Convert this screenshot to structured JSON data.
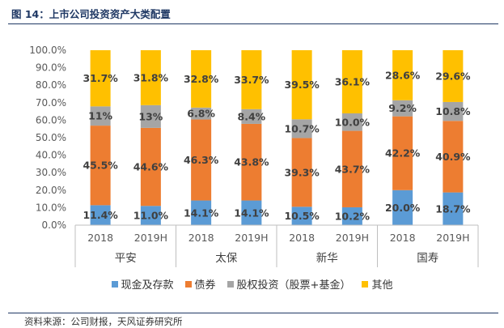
{
  "figure_title": "图 14：上市公司投资资产大类配置",
  "source": "资料来源：公司财报，天风证券研究所",
  "chart_data": {
    "type": "bar",
    "stacked": true,
    "percent": true,
    "title": "",
    "xlabel": "",
    "ylabel": "",
    "ylim": [
      0,
      100
    ],
    "yticks": [
      "0.0%",
      "10.0%",
      "20.0%",
      "30.0%",
      "40.0%",
      "50.0%",
      "60.0%",
      "70.0%",
      "80.0%",
      "90.0%",
      "100.0%"
    ],
    "groups": [
      "平安",
      "太保",
      "新华",
      "国寿"
    ],
    "categories": [
      "2018",
      "2019H",
      "2018",
      "2019H",
      "2018",
      "2019H",
      "2018",
      "2019H"
    ],
    "legend_position": "bottom",
    "grid": false,
    "series": [
      {
        "name": "现金及存款",
        "color": "#5b9bd5",
        "values": [
          11.4,
          11.0,
          14.1,
          14.1,
          10.5,
          10.2,
          20.0,
          18.7
        ],
        "labels": [
          "11.4%",
          "11.0%",
          "14.1%",
          "14.1%",
          "10.5%",
          "10.2%",
          "20.0%",
          "18.7%"
        ]
      },
      {
        "name": "债券",
        "color": "#ed7d31",
        "values": [
          45.5,
          44.6,
          46.3,
          43.8,
          39.3,
          43.7,
          42.2,
          40.9
        ],
        "labels": [
          "45.5%",
          "44.6%",
          "46.3%",
          "43.8%",
          "39.3%",
          "43.7%",
          "42.2%",
          "40.9%"
        ]
      },
      {
        "name": "股权投资（股票+基金）",
        "color": "#a5a5a5",
        "values": [
          11,
          13,
          6.8,
          8.4,
          10.7,
          10.0,
          9.2,
          10.8
        ],
        "labels": [
          "11%",
          "13%",
          "6.8%",
          "8.4%",
          "10.7%",
          "10.0%",
          "9.2%",
          "10.8%"
        ]
      },
      {
        "name": "其他",
        "color": "#ffc000",
        "values": [
          31.7,
          31.8,
          32.8,
          33.7,
          39.5,
          36.1,
          28.6,
          29.6
        ],
        "labels": [
          "31.7%",
          "31.8%",
          "32.8%",
          "33.7%",
          "39.5%",
          "36.1%",
          "28.6%",
          "29.6%"
        ]
      }
    ]
  }
}
